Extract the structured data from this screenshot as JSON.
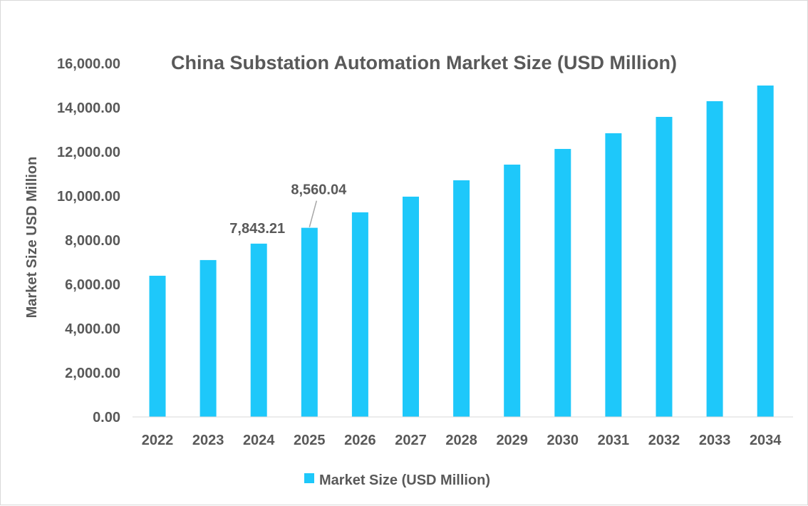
{
  "chart_data": {
    "type": "bar",
    "title": "China Substation Automation Market Size (USD Million)",
    "xlabel": "",
    "ylabel": "Market Size USD Million",
    "ylim": [
      0,
      16000
    ],
    "yticks": [
      "0.00",
      "2,000.00",
      "4,000.00",
      "6,000.00",
      "8,000.00",
      "10,000.00",
      "12,000.00",
      "14,000.00",
      "16,000.00"
    ],
    "categories": [
      "2022",
      "2023",
      "2024",
      "2025",
      "2026",
      "2027",
      "2028",
      "2029",
      "2030",
      "2031",
      "2032",
      "2033",
      "2034"
    ],
    "series": [
      {
        "name": "Market Size (USD Million)",
        "color": "#1ec8fa",
        "values": [
          6390,
          7100,
          7843.21,
          8560.04,
          9260,
          9970,
          10710,
          11420,
          12130,
          12840,
          13580,
          14290,
          15000
        ]
      }
    ],
    "data_labels": [
      {
        "category": "2024",
        "text": "7,843.21"
      },
      {
        "category": "2025",
        "text": "8,560.04"
      }
    ],
    "legend": {
      "position": "bottom",
      "label": "Market Size (USD Million)"
    },
    "grid": false
  }
}
